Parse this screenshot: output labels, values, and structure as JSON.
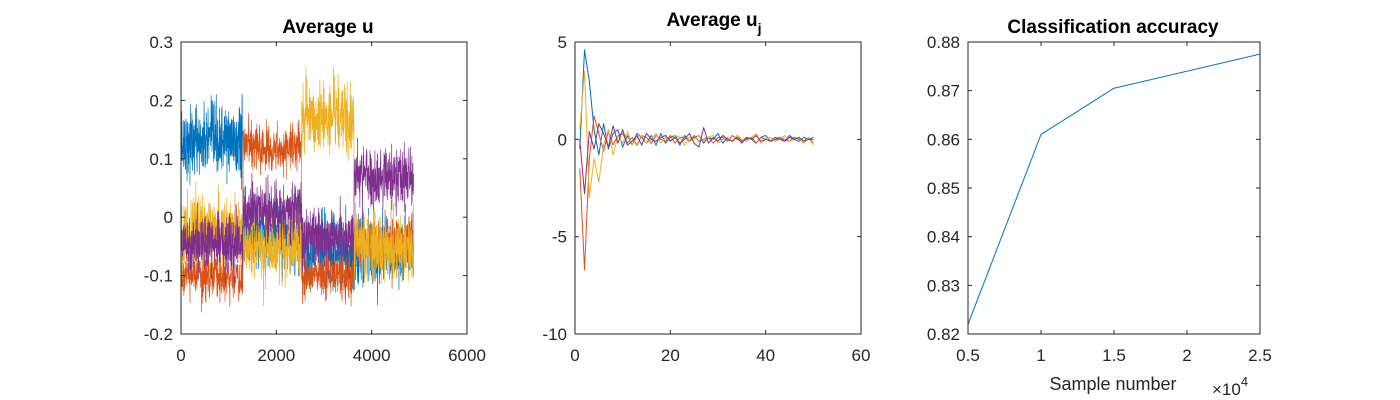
{
  "colors": {
    "series": [
      "#0072BD",
      "#D95319",
      "#EDB120",
      "#7E2F8E"
    ],
    "axis": "#262626",
    "background": "#ffffff"
  },
  "chart_data": [
    {
      "type": "line",
      "title": "Average u",
      "title_sub": "",
      "xlabel": "",
      "ylabel": "",
      "xlim": [
        0,
        6000
      ],
      "ylim": [
        -0.2,
        0.3
      ],
      "xticks": [
        0,
        2000,
        4000,
        6000
      ],
      "xtick_labels": [
        "0",
        "2000",
        "4000",
        "6000"
      ],
      "yticks": [
        -0.2,
        -0.1,
        0,
        0.1,
        0.2,
        0.3
      ],
      "ytick_labels": [
        "-0.2",
        "-0.1",
        "0",
        "0.1",
        "0.2",
        "0.3"
      ],
      "grid": false,
      "noisy": true,
      "x_end": 4880,
      "segment_boundaries": [
        0,
        1300,
        2530,
        3630,
        4880
      ],
      "series": [
        {
          "means": [
            0.13,
            -0.03,
            -0.06,
            -0.06
          ],
          "noise": 0.03
        },
        {
          "means": [
            -0.1,
            0.12,
            -0.1,
            -0.04
          ],
          "noise": 0.02
        },
        {
          "means": [
            -0.02,
            -0.05,
            0.17,
            -0.05
          ],
          "noise": 0.03
        },
        {
          "means": [
            -0.04,
            0.01,
            -0.03,
            0.07
          ],
          "noise": 0.025
        }
      ]
    },
    {
      "type": "line",
      "title": "Average u",
      "title_sub": "j",
      "xlabel": "",
      "ylabel": "",
      "xlim": [
        0,
        60
      ],
      "ylim": [
        -10,
        5
      ],
      "xticks": [
        0,
        20,
        40,
        60
      ],
      "xtick_labels": [
        "0",
        "20",
        "40",
        "60"
      ],
      "yticks": [
        -10,
        -5,
        0,
        5
      ],
      "ytick_labels": [
        "-10",
        "-5",
        "0",
        "5"
      ],
      "grid": false,
      "noisy": false,
      "series": [
        {
          "x": [
            1,
            2,
            3,
            4,
            5,
            6,
            7,
            8,
            9,
            10,
            11,
            12,
            13,
            14,
            15,
            16,
            17,
            18,
            19,
            20,
            21,
            22,
            23,
            24,
            25,
            26,
            27,
            28,
            29,
            30,
            31,
            32,
            33,
            34,
            35,
            36,
            37,
            38,
            39,
            40,
            41,
            42,
            43,
            44,
            45,
            46,
            47,
            48,
            49,
            50
          ],
          "y": [
            -0.5,
            4.6,
            3.0,
            0.5,
            -0.8,
            0.8,
            -0.5,
            0.3,
            0.5,
            -0.4,
            0.2,
            -0.3,
            0.3,
            0.1,
            -0.2,
            0.2,
            -0.3,
            0.3,
            -0.2,
            0.1,
            0.2,
            -0.3,
            0.2,
            -0.1,
            0.1,
            0.2,
            -0.2,
            0.1,
            0.0,
            0.3,
            -0.2,
            0.1,
            -0.1,
            0.2,
            -0.1,
            0.0,
            0.1,
            -0.2,
            0.1,
            0.2,
            -0.1,
            0.0,
            0.1,
            -0.1,
            0.2,
            0.0,
            -0.1,
            0.1,
            0.0,
            0.1
          ]
        },
        {
          "x": [
            1,
            2,
            3,
            4,
            5,
            6,
            7,
            8,
            9,
            10,
            11,
            12,
            13,
            14,
            15,
            16,
            17,
            18,
            19,
            20,
            21,
            22,
            23,
            24,
            25,
            26,
            27,
            28,
            29,
            30,
            31,
            32,
            33,
            34,
            35,
            36,
            37,
            38,
            39,
            40,
            41,
            42,
            43,
            44,
            45,
            46,
            47,
            48,
            49,
            50
          ],
          "y": [
            -1.5,
            -6.7,
            -1.0,
            1.2,
            0.3,
            -0.6,
            0.4,
            -0.3,
            0.2,
            0.3,
            -0.2,
            0.1,
            -0.3,
            0.2,
            0.1,
            -0.2,
            0.2,
            0.0,
            -0.1,
            0.2,
            -0.2,
            0.1,
            0.1,
            -0.1,
            0.2,
            -0.1,
            0.0,
            0.1,
            -0.2,
            0.1,
            0.1,
            -0.1,
            0.2,
            0.0,
            -0.1,
            0.1,
            0.0,
            -0.2,
            0.1,
            0.0,
            0.1,
            -0.1,
            0.1,
            0.0,
            -0.1,
            0.1,
            0.0,
            -0.1,
            0.1,
            -0.2
          ]
        },
        {
          "x": [
            1,
            2,
            3,
            4,
            5,
            6,
            7,
            8,
            9,
            10,
            11,
            12,
            13,
            14,
            15,
            16,
            17,
            18,
            19,
            20,
            21,
            22,
            23,
            24,
            25,
            26,
            27,
            28,
            29,
            30,
            31,
            32,
            33,
            34,
            35,
            36,
            37,
            38,
            39,
            40,
            41,
            42,
            43,
            44,
            45,
            46,
            47,
            48,
            49,
            50
          ],
          "y": [
            0.5,
            3.5,
            -3.0,
            -1.0,
            -2.2,
            -0.3,
            0.5,
            -0.8,
            0.2,
            -0.2,
            0.4,
            -0.3,
            0.1,
            0.2,
            -0.2,
            0.0,
            0.3,
            -0.2,
            0.1,
            -0.1,
            0.2,
            0.1,
            -0.3,
            0.1,
            0.0,
            0.2,
            -0.1,
            0.1,
            0.2,
            -0.2,
            0.0,
            0.1,
            -0.1,
            0.2,
            0.0,
            -0.1,
            0.1,
            0.3,
            -0.2,
            0.0,
            0.1,
            -0.1,
            0.0,
            0.2,
            -0.1,
            0.0,
            0.1,
            -0.2,
            0.1,
            -0.3
          ]
        },
        {
          "x": [
            1,
            2,
            3,
            4,
            5,
            6,
            7,
            8,
            9,
            10,
            11,
            12,
            13,
            14,
            15,
            16,
            17,
            18,
            19,
            20,
            21,
            22,
            23,
            24,
            25,
            26,
            27,
            28,
            29,
            30,
            31,
            32,
            33,
            34,
            35,
            36,
            37,
            38,
            39,
            40,
            41,
            42,
            43,
            44,
            45,
            46,
            47,
            48,
            49,
            50
          ],
          "y": [
            0.0,
            -2.8,
            0.4,
            -0.5,
            0.8,
            0.3,
            -0.4,
            0.7,
            -0.2,
            0.5,
            -0.3,
            -0.1,
            0.2,
            -0.3,
            0.3,
            0.0,
            -0.1,
            0.1,
            0.2,
            -0.1,
            0.1,
            -0.2,
            0.0,
            0.3,
            -0.2,
            -0.4,
            0.6,
            -0.2,
            0.1,
            -0.1,
            0.2,
            0.0,
            -0.1,
            0.1,
            -0.2,
            0.1,
            0.0,
            0.2,
            -0.1,
            0.0,
            -0.1,
            0.1,
            0.0,
            -0.1,
            0.1,
            0.0,
            0.1,
            -0.1,
            0.0,
            0.0
          ]
        }
      ]
    },
    {
      "type": "line",
      "title": "Classification accuracy",
      "title_sub": "",
      "xlabel": "Sample number",
      "ylabel": "",
      "x_exponent_base": "×10",
      "x_exponent_power": "4",
      "xlim": [
        0.5,
        2.5
      ],
      "ylim": [
        0.82,
        0.88
      ],
      "xticks": [
        0.5,
        1,
        1.5,
        2,
        2.5
      ],
      "xtick_labels": [
        "0.5",
        "1",
        "1.5",
        "2",
        "2.5"
      ],
      "yticks": [
        0.82,
        0.83,
        0.84,
        0.85,
        0.86,
        0.87,
        0.88
      ],
      "ytick_labels": [
        "0.82",
        "0.83",
        "0.84",
        "0.85",
        "0.86",
        "0.87",
        "0.88"
      ],
      "grid": false,
      "noisy": false,
      "series": [
        {
          "x": [
            0.5,
            1.0,
            1.5,
            2.5
          ],
          "y": [
            0.822,
            0.861,
            0.8705,
            0.8775
          ]
        }
      ]
    }
  ]
}
